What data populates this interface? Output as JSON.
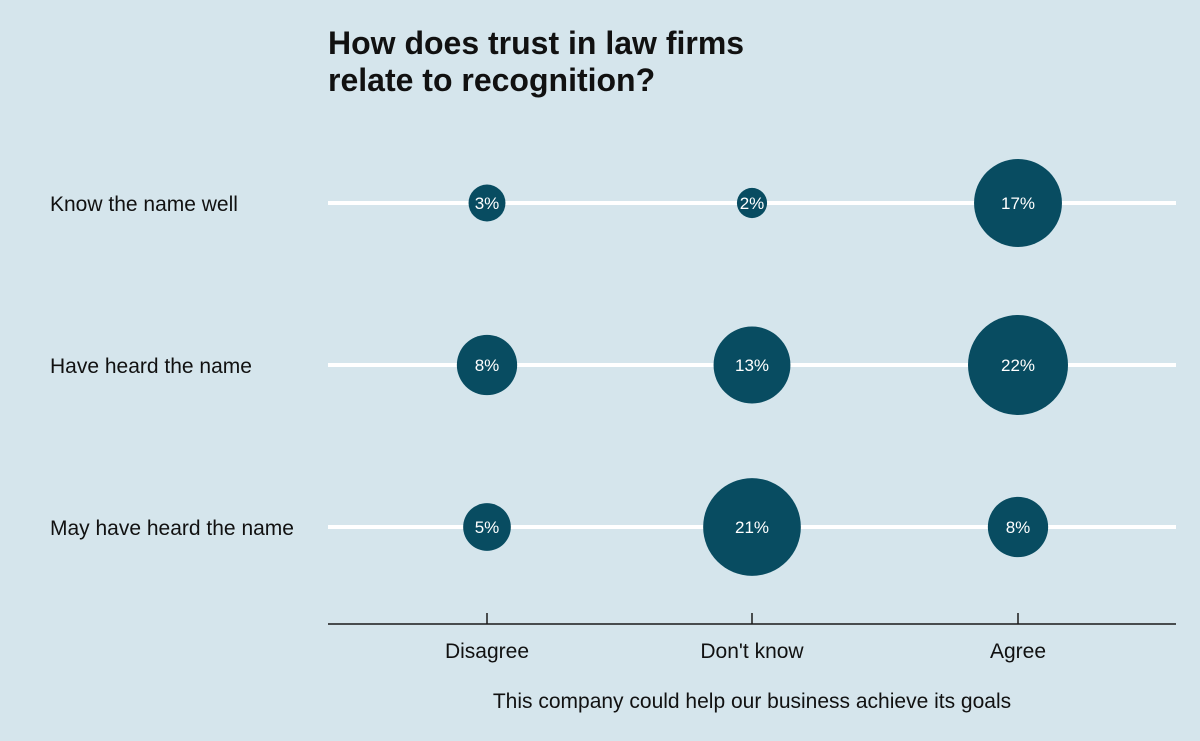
{
  "chart_data": {
    "type": "bubble",
    "title": "How does trust in law firms relate to recognition?",
    "title_lines": [
      "How does trust in law firms",
      "relate to recognition?"
    ],
    "xlabel": "This company could help our business achieve its goals",
    "ylabel": "",
    "categories": [
      "Disagree",
      "Don't know",
      "Agree"
    ],
    "rows": [
      "Know the name well",
      "Have heard the name",
      "May have heard the name"
    ],
    "series": [
      {
        "row": "Know the name well",
        "values": [
          3,
          2,
          17
        ],
        "labels": [
          "3%",
          "2%",
          "17%"
        ]
      },
      {
        "row": "Have heard the name",
        "values": [
          8,
          13,
          22
        ],
        "labels": [
          "8%",
          "13%",
          "22%"
        ]
      },
      {
        "row": "May have heard the name",
        "values": [
          5,
          21,
          8
        ],
        "labels": [
          "5%",
          "21%",
          "8%"
        ]
      }
    ],
    "unit": "%",
    "grid": false,
    "legend": "none",
    "colors": {
      "background": "#d5e5ec",
      "bubble": "#084c61",
      "bubble_text": "#ffffff",
      "row_line": "#ffffff",
      "axis": "#1a1a1a",
      "text": "#111111"
    }
  }
}
